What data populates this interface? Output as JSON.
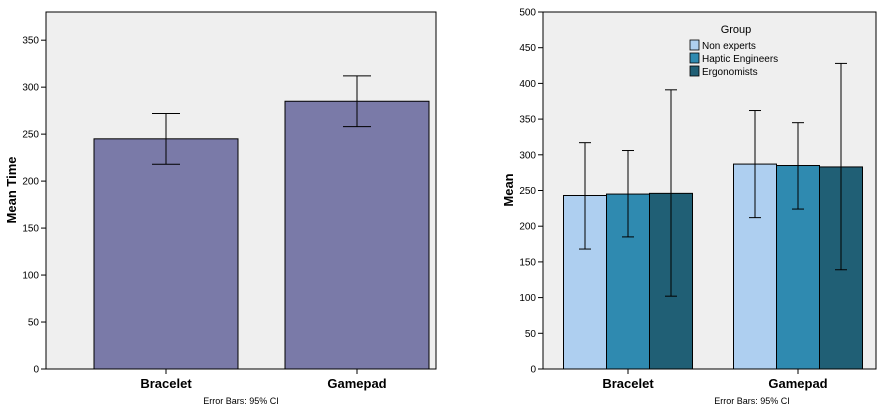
{
  "chart_data": [
    {
      "type": "bar",
      "categories": [
        "Bracelet",
        "Gamepad"
      ],
      "values": [
        245,
        285
      ],
      "error_bars": [
        [
          218,
          272
        ],
        [
          258,
          312
        ]
      ],
      "ylabel": "Mean Time",
      "ylim": [
        0,
        380
      ],
      "yticks": [
        0,
        50,
        100,
        150,
        200,
        250,
        300,
        350
      ],
      "footnote": "Error Bars: 95% CI",
      "bar_color": "#7a7aa8",
      "plot_background": "#efefef",
      "grid": false
    },
    {
      "type": "bar",
      "categories": [
        "Bracelet",
        "Gamepad"
      ],
      "legend_title": "Group",
      "legend_position": "top-right",
      "series": [
        {
          "name": "Non experts",
          "color": "#aecff0",
          "values": [
            243,
            287
          ],
          "error_bars": [
            [
              168,
              317
            ],
            [
              212,
              362
            ]
          ]
        },
        {
          "name": "Haptic Engineers",
          "color": "#2f8ab0",
          "values": [
            245,
            285
          ],
          "error_bars": [
            [
              185,
              306
            ],
            [
              224,
              345
            ]
          ]
        },
        {
          "name": "Ergonomists",
          "color": "#205f75",
          "values": [
            246,
            283
          ],
          "error_bars": [
            [
              102,
              391
            ],
            [
              139,
              428
            ]
          ]
        }
      ],
      "ylabel": "Mean",
      "ylim": [
        0,
        500
      ],
      "yticks": [
        0,
        50,
        100,
        150,
        200,
        250,
        300,
        350,
        400,
        450,
        500
      ],
      "footnote": "Error Bars: 95% CI",
      "plot_background": "#efefef",
      "grid": false
    }
  ]
}
